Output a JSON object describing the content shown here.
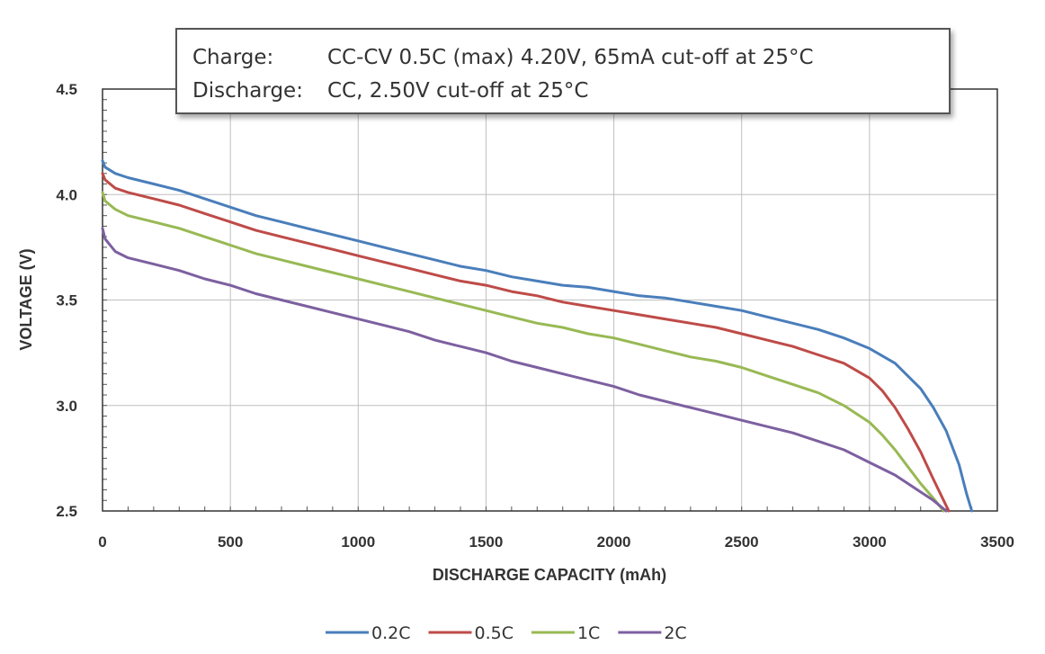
{
  "chart_data": {
    "type": "line",
    "annotation": {
      "lines": [
        {
          "label": "Charge:",
          "text": "CC-CV 0.5C (max) 4.20V, 65mA cut-off at 25°C"
        },
        {
          "label": "Discharge:",
          "text": "CC, 2.50V cut-off at 25°C"
        }
      ]
    },
    "xlabel": "DISCHARGE CAPACITY (mAh)",
    "ylabel": "VOLTAGE (V)",
    "xlim": [
      0,
      3500
    ],
    "ylim": [
      2.5,
      4.5
    ],
    "x_ticks": [
      0,
      500,
      1000,
      1500,
      2000,
      2500,
      3000,
      3500
    ],
    "x_tick_labels": [
      "0",
      "500",
      "1000",
      "1500",
      "2000",
      "2500",
      "3000",
      "3500"
    ],
    "y_ticks": [
      2.5,
      3.0,
      3.5,
      4.0,
      4.5
    ],
    "y_tick_labels": [
      "2.5",
      "3.0",
      "3.5",
      "4.0",
      "4.5"
    ],
    "grid": true,
    "legend_position": "bottom",
    "series": [
      {
        "name": "0.2C",
        "color": "#4a7ebb",
        "points": [
          [
            0,
            4.16
          ],
          [
            10,
            4.13
          ],
          [
            50,
            4.1
          ],
          [
            100,
            4.08
          ],
          [
            200,
            4.05
          ],
          [
            300,
            4.02
          ],
          [
            400,
            3.98
          ],
          [
            500,
            3.94
          ],
          [
            600,
            3.9
          ],
          [
            700,
            3.87
          ],
          [
            800,
            3.84
          ],
          [
            900,
            3.81
          ],
          [
            1000,
            3.78
          ],
          [
            1100,
            3.75
          ],
          [
            1200,
            3.72
          ],
          [
            1300,
            3.69
          ],
          [
            1400,
            3.66
          ],
          [
            1500,
            3.64
          ],
          [
            1600,
            3.61
          ],
          [
            1700,
            3.59
          ],
          [
            1800,
            3.57
          ],
          [
            1900,
            3.56
          ],
          [
            2000,
            3.54
          ],
          [
            2100,
            3.52
          ],
          [
            2200,
            3.51
          ],
          [
            2300,
            3.49
          ],
          [
            2400,
            3.47
          ],
          [
            2500,
            3.45
          ],
          [
            2600,
            3.42
          ],
          [
            2700,
            3.39
          ],
          [
            2800,
            3.36
          ],
          [
            2900,
            3.32
          ],
          [
            3000,
            3.27
          ],
          [
            3100,
            3.2
          ],
          [
            3200,
            3.08
          ],
          [
            3250,
            2.99
          ],
          [
            3300,
            2.88
          ],
          [
            3350,
            2.72
          ],
          [
            3380,
            2.58
          ],
          [
            3400,
            2.5
          ]
        ]
      },
      {
        "name": "0.5C",
        "color": "#be4b48",
        "points": [
          [
            0,
            4.1
          ],
          [
            10,
            4.07
          ],
          [
            50,
            4.03
          ],
          [
            100,
            4.01
          ],
          [
            200,
            3.98
          ],
          [
            300,
            3.95
          ],
          [
            400,
            3.91
          ],
          [
            500,
            3.87
          ],
          [
            600,
            3.83
          ],
          [
            700,
            3.8
          ],
          [
            800,
            3.77
          ],
          [
            900,
            3.74
          ],
          [
            1000,
            3.71
          ],
          [
            1100,
            3.68
          ],
          [
            1200,
            3.65
          ],
          [
            1300,
            3.62
          ],
          [
            1400,
            3.59
          ],
          [
            1500,
            3.57
          ],
          [
            1600,
            3.54
          ],
          [
            1700,
            3.52
          ],
          [
            1800,
            3.49
          ],
          [
            1900,
            3.47
          ],
          [
            2000,
            3.45
          ],
          [
            2100,
            3.43
          ],
          [
            2200,
            3.41
          ],
          [
            2300,
            3.39
          ],
          [
            2400,
            3.37
          ],
          [
            2500,
            3.34
          ],
          [
            2600,
            3.31
          ],
          [
            2700,
            3.28
          ],
          [
            2800,
            3.24
          ],
          [
            2900,
            3.2
          ],
          [
            3000,
            3.13
          ],
          [
            3050,
            3.07
          ],
          [
            3100,
            2.99
          ],
          [
            3150,
            2.89
          ],
          [
            3200,
            2.78
          ],
          [
            3250,
            2.65
          ],
          [
            3290,
            2.55
          ],
          [
            3310,
            2.5
          ]
        ]
      },
      {
        "name": "1C",
        "color": "#98b954",
        "points": [
          [
            0,
            4.01
          ],
          [
            10,
            3.97
          ],
          [
            50,
            3.93
          ],
          [
            100,
            3.9
          ],
          [
            200,
            3.87
          ],
          [
            300,
            3.84
          ],
          [
            400,
            3.8
          ],
          [
            500,
            3.76
          ],
          [
            600,
            3.72
          ],
          [
            700,
            3.69
          ],
          [
            800,
            3.66
          ],
          [
            900,
            3.63
          ],
          [
            1000,
            3.6
          ],
          [
            1100,
            3.57
          ],
          [
            1200,
            3.54
          ],
          [
            1300,
            3.51
          ],
          [
            1400,
            3.48
          ],
          [
            1500,
            3.45
          ],
          [
            1600,
            3.42
          ],
          [
            1700,
            3.39
          ],
          [
            1800,
            3.37
          ],
          [
            1900,
            3.34
          ],
          [
            2000,
            3.32
          ],
          [
            2100,
            3.29
          ],
          [
            2200,
            3.26
          ],
          [
            2300,
            3.23
          ],
          [
            2400,
            3.21
          ],
          [
            2500,
            3.18
          ],
          [
            2600,
            3.14
          ],
          [
            2700,
            3.1
          ],
          [
            2800,
            3.06
          ],
          [
            2900,
            3.0
          ],
          [
            3000,
            2.92
          ],
          [
            3050,
            2.86
          ],
          [
            3100,
            2.79
          ],
          [
            3150,
            2.71
          ],
          [
            3200,
            2.63
          ],
          [
            3250,
            2.56
          ],
          [
            3290,
            2.5
          ]
        ]
      },
      {
        "name": "2C",
        "color": "#7d60a0",
        "points": [
          [
            0,
            3.84
          ],
          [
            10,
            3.79
          ],
          [
            50,
            3.73
          ],
          [
            100,
            3.7
          ],
          [
            200,
            3.67
          ],
          [
            300,
            3.64
          ],
          [
            400,
            3.6
          ],
          [
            500,
            3.57
          ],
          [
            600,
            3.53
          ],
          [
            700,
            3.5
          ],
          [
            800,
            3.47
          ],
          [
            900,
            3.44
          ],
          [
            1000,
            3.41
          ],
          [
            1100,
            3.38
          ],
          [
            1200,
            3.35
          ],
          [
            1300,
            3.31
          ],
          [
            1400,
            3.28
          ],
          [
            1500,
            3.25
          ],
          [
            1600,
            3.21
          ],
          [
            1700,
            3.18
          ],
          [
            1800,
            3.15
          ],
          [
            1900,
            3.12
          ],
          [
            2000,
            3.09
          ],
          [
            2100,
            3.05
          ],
          [
            2200,
            3.02
          ],
          [
            2300,
            2.99
          ],
          [
            2400,
            2.96
          ],
          [
            2500,
            2.93
          ],
          [
            2600,
            2.9
          ],
          [
            2700,
            2.87
          ],
          [
            2800,
            2.83
          ],
          [
            2900,
            2.79
          ],
          [
            3000,
            2.73
          ],
          [
            3100,
            2.67
          ],
          [
            3150,
            2.63
          ],
          [
            3200,
            2.59
          ],
          [
            3250,
            2.55
          ],
          [
            3300,
            2.5
          ]
        ]
      }
    ]
  }
}
